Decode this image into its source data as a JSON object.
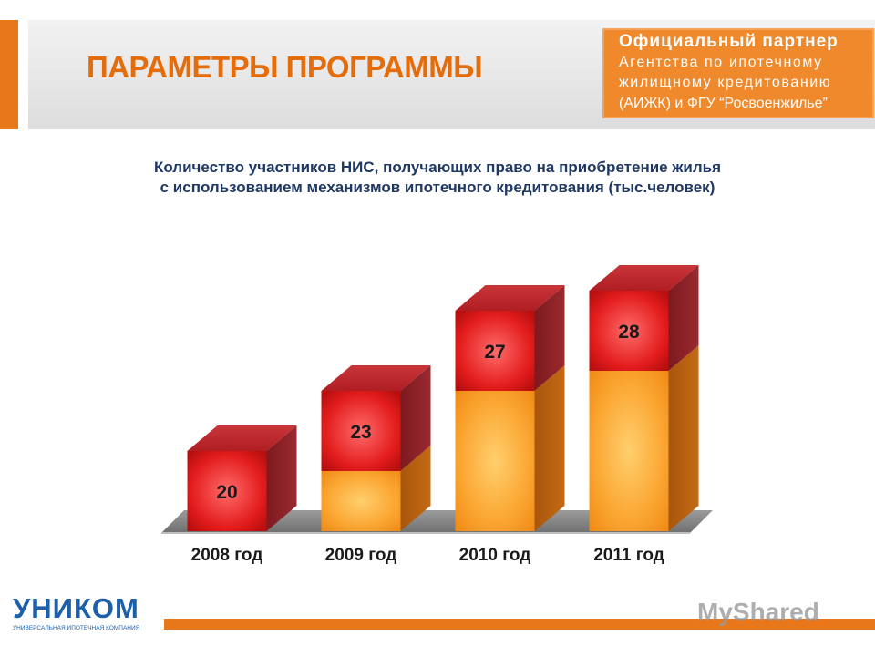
{
  "header": {
    "title": "ПАРАМЕТРЫ ПРОГРАММЫ",
    "partner_line1": "Официальный партнер",
    "partner_line2": "Агентства по ипотечному",
    "partner_line3": "жилищному кредитованию",
    "partner_line4": "(АИЖК) и ФГУ “Росвоенжилье”"
  },
  "chart_data": {
    "type": "bar",
    "title_line1": "Количество участников НИС, получающих право на приобретение жилья",
    "title_line2": "с использованием механизмов ипотечного кредитования (тыс.человек)",
    "categories": [
      "2008 год",
      "2009 год",
      "2010 год",
      "2011 год"
    ],
    "values": [
      20,
      23,
      27,
      28
    ],
    "colors": {
      "value_block": "#e82020",
      "stack": "#f7a12a",
      "floor": "#7f7f7f"
    }
  },
  "footer": {
    "logo": "УНИКОМ",
    "logo_sub": "УНИВЕРСАЛЬНАЯ ИПОТЕЧНАЯ КОМПАНИЯ",
    "watermark": "MyShared"
  }
}
